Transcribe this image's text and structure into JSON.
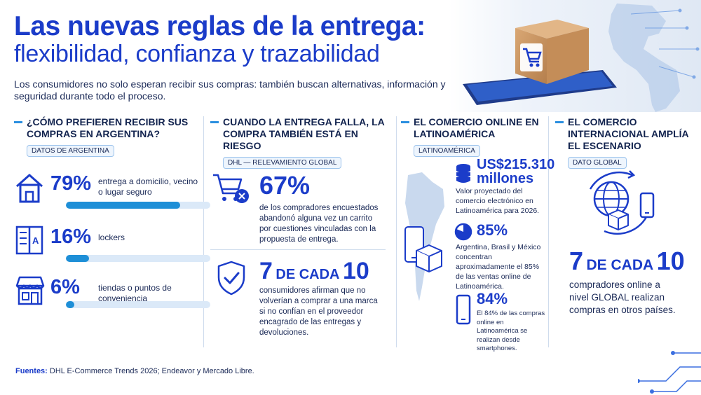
{
  "header": {
    "title_line1": "Las nuevas reglas de la entrega:",
    "title_line2": "flexibilidad, confianza y trazabilidad",
    "intro": "Los consumidores no solo esperan recibir sus compras: también buscan alternativas, información y seguridad durante todo el proceso."
  },
  "col1": {
    "heading": "¿CÓMO PREFIEREN RECIBIR SUS COMPRAS EN ARGENTINA?",
    "tag": "DATOS DE ARGENTINA",
    "items": [
      {
        "value": "79%",
        "label": "entrega a domicilio, vecino o lugar seguro",
        "fill": 0.79,
        "icon": "house-icon"
      },
      {
        "value": "16%",
        "label": "lockers",
        "fill": 0.16,
        "icon": "locker-icon"
      },
      {
        "value": "6%",
        "label": "tiendas o puntos de conveniencia",
        "fill": 0.06,
        "icon": "store-icon"
      }
    ]
  },
  "col2": {
    "heading": "CUANDO LA ENTREGA FALLA, LA COMPRA TAMBIÉN ESTÁ EN RIESGO",
    "tag": "DHL — RELEVAMIENTO GLOBAL",
    "stat1_value": "67%",
    "stat1_text": "de los compradores encuestados abandonó alguna vez un carrito por cuestiones vinculadas con la propuesta de entrega.",
    "stat2_value_num1": "7",
    "stat2_value_mid": "DE CADA",
    "stat2_value_num2": "10",
    "stat2_text": "consumidores afirman que no volverían a comprar a una marca si no confían en el proveedor encagrado de las entregas y devoluciones."
  },
  "col3": {
    "heading": "EL COMERCIO ONLINE EN LATINOAMÉRICA",
    "tag": "LATINOAMÉRICA",
    "stat1_value_line1": "US$215.310",
    "stat1_value_line2": "millones",
    "stat1_text": "Valor proyectado del comercio electrónico en Latinoamérica para 2026.",
    "stat2_value": "85%",
    "stat2_text": "Argentina, Brasil y México concentran aproximadamente el 85% de las ventas online de Latinoamérica.",
    "stat3_value": "84%",
    "stat3_text": "El 84% de las compras online en Latinoamérica se realizan desde smartphones."
  },
  "col4": {
    "heading": "EL COMERCIO INTERNACIONAL AMPLÍA EL ESCENARIO",
    "tag": "DATO GLOBAL",
    "stat_num1": "7",
    "stat_mid": "DE CADA",
    "stat_num2": "10",
    "stat_text": "compradores online a nivel GLOBAL realizan compras en otros países."
  },
  "footer": {
    "label": "Fuentes:",
    "text": "DHL E-Commerce Trends 2026; Endeavor y Mercado Libre."
  },
  "colors": {
    "brand_blue": "#1b3cc9",
    "accent_blue": "#1e8fd7",
    "text_dark": "#13244f"
  }
}
